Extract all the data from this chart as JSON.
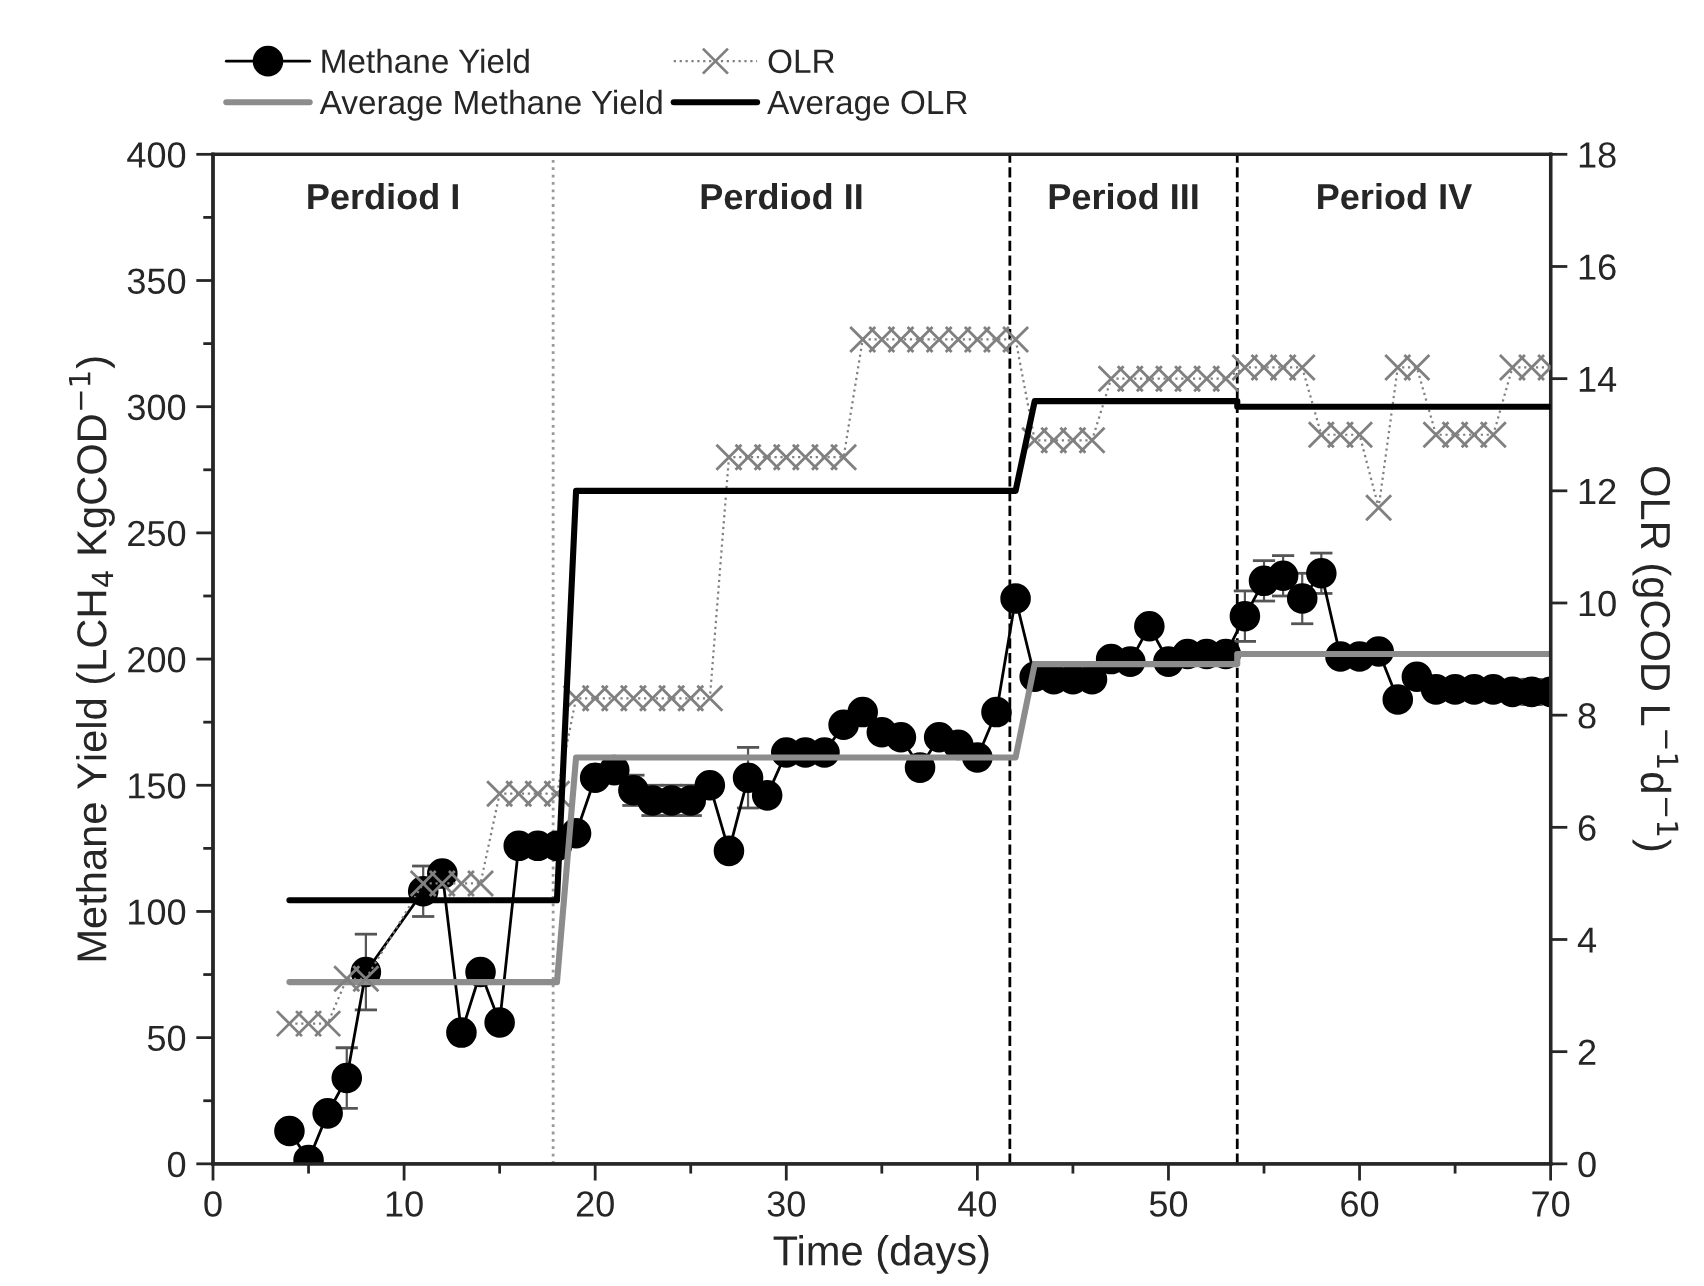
{
  "chart_data": {
    "type": "line",
    "xlabel": "Time (days)",
    "ylabel": "Methane Yield (LCH$_{4}$ KgCOD$^{−1}$)",
    "y2label": "OLR (gCOD L$^{−1}$d$^{−1}$)",
    "xlim": [
      0,
      70
    ],
    "xticks": [
      0,
      {
        "value": 5,
        "label": null
      },
      10,
      {
        "value": 15,
        "label": null
      },
      20,
      {
        "value": 25,
        "label": null
      },
      30,
      {
        "value": 35,
        "label": null
      },
      40,
      {
        "value": 45,
        "label": null
      },
      50,
      {
        "value": 55,
        "label": null
      },
      60,
      {
        "value": 65,
        "label": null
      },
      70
    ],
    "ylim": [
      0,
      400
    ],
    "yticks": [
      0,
      {
        "value": 25,
        "label": null
      },
      50,
      {
        "value": 75,
        "label": null
      },
      100,
      {
        "value": 125,
        "label": null
      },
      150,
      {
        "value": 175,
        "label": null
      },
      200,
      {
        "value": 225,
        "label": null
      },
      250,
      {
        "value": 275,
        "label": null
      },
      300,
      {
        "value": 325,
        "label": null
      },
      350,
      {
        "value": 375,
        "label": null
      },
      400
    ],
    "y2lim": [
      0,
      18
    ],
    "y2ticks": [
      0,
      2,
      4,
      6,
      8,
      10,
      12,
      14,
      16,
      18
    ],
    "legend": "top left",
    "grid": false,
    "series": [
      {
        "name": "Methane Yield",
        "color": "#000000",
        "marker": "circle",
        "line_style": "solid",
        "x": [
          4,
          5,
          6,
          7,
          8,
          11,
          12,
          13,
          14,
          15,
          16,
          17,
          18,
          19,
          20,
          21,
          22,
          23,
          24,
          25,
          26,
          27,
          28,
          29,
          30,
          31,
          32,
          33,
          34,
          35,
          36,
          37,
          38,
          39,
          40,
          41,
          42,
          43,
          44,
          45,
          46,
          47,
          48,
          49,
          50,
          51,
          52,
          53,
          54,
          55,
          56,
          57,
          58,
          59,
          60,
          61,
          62,
          63,
          64,
          65,
          66,
          67,
          68,
          69,
          70
        ],
        "values": [
          13,
          1.5,
          20,
          34,
          76,
          108,
          115,
          52,
          76,
          56,
          126,
          126,
          126,
          131,
          153,
          156,
          148,
          144,
          144,
          144,
          150,
          124,
          153,
          146,
          163,
          163,
          163,
          174,
          179,
          171,
          169,
          157,
          169,
          166,
          161,
          179,
          224,
          193,
          192,
          192,
          192,
          200,
          199,
          213,
          199,
          202,
          202,
          202,
          217,
          231,
          233,
          224,
          234,
          201,
          201,
          203,
          184,
          193,
          188,
          188,
          188,
          188,
          187,
          187,
          187
        ],
        "errors": [
          null,
          null,
          null,
          12,
          15,
          10,
          null,
          null,
          null,
          null,
          null,
          null,
          null,
          null,
          null,
          null,
          6,
          6,
          6,
          6,
          null,
          null,
          12,
          null,
          null,
          null,
          null,
          null,
          null,
          null,
          null,
          null,
          null,
          null,
          null,
          null,
          null,
          null,
          null,
          null,
          null,
          null,
          null,
          null,
          null,
          null,
          null,
          null,
          10,
          8,
          8,
          10,
          8,
          null,
          null,
          null,
          null,
          null,
          null,
          null,
          null,
          null,
          null,
          5,
          null
        ]
      },
      {
        "name": "Average Methane Yield",
        "color": "#8c8c8c",
        "marker": "none",
        "line_style": "solid",
        "x": [
          4,
          18,
          19,
          42,
          43,
          53.6,
          53.6,
          70
        ],
        "values": [
          72,
          72,
          161,
          161,
          198,
          198,
          202,
          202
        ]
      },
      {
        "name": "OLR",
        "color": "#808080",
        "marker": "cross",
        "line_style": "dotted",
        "axis": "y2",
        "x": [
          4,
          5,
          6,
          7,
          8,
          11,
          12,
          13,
          14,
          15,
          16,
          17,
          18,
          19,
          20,
          21,
          22,
          23,
          24,
          25,
          26,
          27,
          28,
          29,
          30,
          31,
          32,
          33,
          34,
          35,
          36,
          37,
          38,
          39,
          40,
          41,
          42,
          43,
          44,
          45,
          46,
          47,
          48,
          49,
          50,
          51,
          52,
          53,
          54,
          55,
          56,
          57,
          58,
          59,
          60,
          61,
          62,
          63,
          64,
          65,
          66,
          67,
          68,
          69,
          70
        ],
        "values": [
          2.5,
          2.5,
          2.5,
          3.3,
          3.3,
          5.0,
          5.0,
          5.0,
          5.0,
          6.6,
          6.6,
          6.6,
          6.6,
          8.3,
          8.3,
          8.3,
          8.3,
          8.3,
          8.3,
          8.3,
          8.3,
          12.6,
          12.6,
          12.6,
          12.6,
          12.6,
          12.6,
          12.6,
          14.7,
          14.7,
          14.7,
          14.7,
          14.7,
          14.7,
          14.7,
          14.7,
          14.7,
          12.9,
          12.9,
          12.9,
          12.9,
          14.0,
          14.0,
          14.0,
          14.0,
          14.0,
          14.0,
          14.0,
          14.2,
          14.2,
          14.2,
          14.2,
          13.0,
          13.0,
          13.0,
          11.7,
          14.2,
          14.2,
          13.0,
          13.0,
          13.0,
          13.0,
          14.2,
          14.2,
          14.2
        ]
      },
      {
        "name": "Average OLR",
        "color": "#000000",
        "marker": "none",
        "line_style": "solid",
        "axis": "y2",
        "x": [
          4,
          18,
          19,
          42,
          43,
          53.6,
          53.6,
          70
        ],
        "values": [
          4.7,
          4.7,
          12.0,
          12.0,
          13.6,
          13.6,
          13.5,
          13.5
        ]
      }
    ],
    "ref_lines": [
      {
        "axis": "x",
        "value": 17.8,
        "color": "#999999",
        "line_style": "dotted"
      },
      {
        "axis": "x",
        "value": 41.7,
        "color": "#000000",
        "line_style": "dashed"
      },
      {
        "axis": "x",
        "value": 53.6,
        "color": "#000000",
        "line_style": "dashed"
      }
    ],
    "annotations": [
      "Perdiod I",
      "Perdiod II",
      "Period III",
      "Period IV"
    ]
  }
}
